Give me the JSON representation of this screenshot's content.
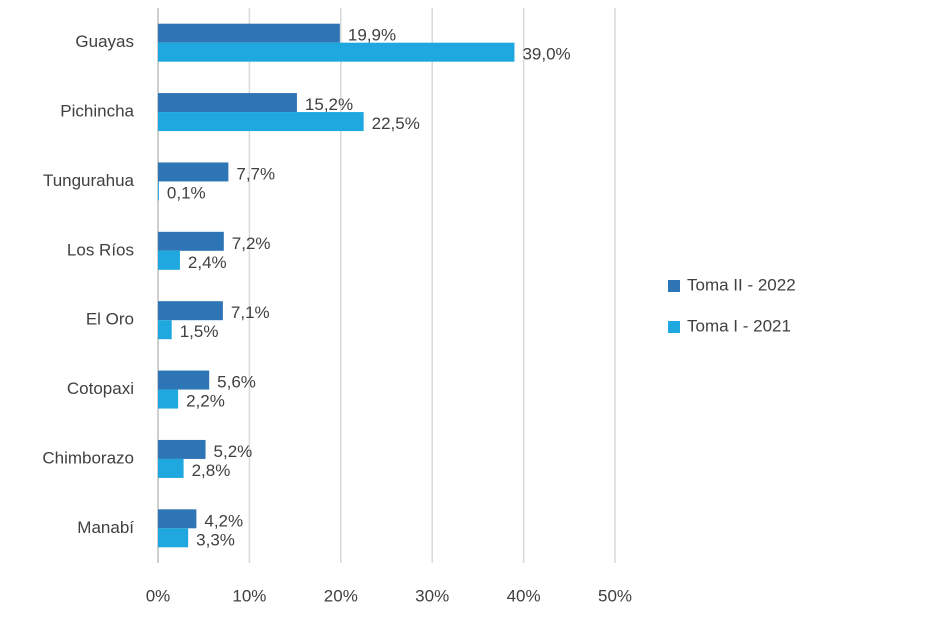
{
  "chart_data": {
    "type": "hbar",
    "categories": [
      "Guayas",
      "Pichincha",
      "Tungurahua",
      "Los Ríos",
      "El Oro",
      "Cotopaxi",
      "Chimborazo",
      "Manabí"
    ],
    "series": [
      {
        "name": "Toma II - 2022",
        "color": "#2e75b6",
        "values": [
          19.9,
          15.2,
          7.7,
          7.2,
          7.1,
          5.6,
          5.2,
          4.2
        ],
        "value_labels": [
          "19,9%",
          "15,2%",
          "7,7%",
          "7,2%",
          "7,1%",
          "5,6%",
          "5,2%",
          "4,2%"
        ]
      },
      {
        "name": "Toma I - 2021",
        "color": "#1fa8e0",
        "values": [
          39.0,
          22.5,
          0.1,
          2.4,
          1.5,
          2.2,
          2.8,
          3.3
        ],
        "value_labels": [
          "39,0%",
          "22,5%",
          "0,1%",
          "2,4%",
          "1,5%",
          "2,2%",
          "2,8%",
          "3,3%"
        ]
      }
    ],
    "xlim": [
      0,
      50
    ],
    "xticks": [
      {
        "value": 0,
        "label": "0%"
      },
      {
        "value": 10,
        "label": "10%"
      },
      {
        "value": 20,
        "label": "20%"
      },
      {
        "value": 30,
        "label": "30%"
      },
      {
        "value": 40,
        "label": "40%"
      },
      {
        "value": 50,
        "label": "50%"
      }
    ],
    "grid": true,
    "legend": "right"
  }
}
